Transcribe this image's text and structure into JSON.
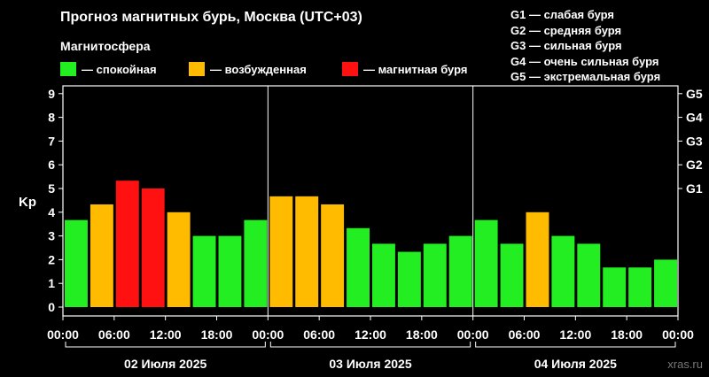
{
  "title": "Прогноз магнитных бурь, Москва (UTC+03)",
  "magnetosphere_label": "Магнитосфера",
  "legend": [
    {
      "label": "— спокойная",
      "color": "#22ee22"
    },
    {
      "label": "— возбужденная",
      "color": "#ffbb00"
    },
    {
      "label": "— магнитная буря",
      "color": "#ff1111"
    }
  ],
  "g_scale": [
    "G1 — слабая буря",
    "G2 — средняя буря",
    "G3 — сильная буря",
    "G4 — очень сильная буря",
    "G5 — экстремальная буря"
  ],
  "watermark": "xras.ru",
  "chart_data": {
    "type": "bar",
    "ylabel": "Kp",
    "ylim": [
      0,
      9
    ],
    "yticks": [
      "0",
      "1",
      "2",
      "3",
      "4",
      "5",
      "6",
      "7",
      "8",
      "9"
    ],
    "right_ticks": [
      {
        "value": 5,
        "label": "G1"
      },
      {
        "value": 6,
        "label": "G2"
      },
      {
        "value": 7,
        "label": "G3"
      },
      {
        "value": 8,
        "label": "G4"
      },
      {
        "value": 9,
        "label": "G5"
      }
    ],
    "x_tick_labels": [
      "00:00",
      "06:00",
      "12:00",
      "18:00",
      "00:00",
      "06:00",
      "12:00",
      "18:00",
      "00:00",
      "06:00",
      "12:00",
      "18:00",
      "00:00"
    ],
    "days": [
      "02 Июля 2025",
      "03 Июля 2025",
      "04 Июля 2025"
    ],
    "values": [
      3.67,
      4.33,
      5.33,
      5.0,
      4.0,
      3.0,
      3.0,
      3.67,
      4.67,
      4.67,
      4.33,
      3.33,
      2.67,
      2.33,
      2.67,
      3.0,
      3.67,
      2.67,
      4.0,
      3.0,
      2.67,
      1.67,
      1.67,
      2.0
    ],
    "levels": [
      "quiet",
      "active",
      "storm",
      "storm",
      "active",
      "quiet",
      "quiet",
      "quiet",
      "active",
      "active",
      "active",
      "quiet",
      "quiet",
      "quiet",
      "quiet",
      "quiet",
      "quiet",
      "quiet",
      "active",
      "quiet",
      "quiet",
      "quiet",
      "quiet",
      "quiet"
    ],
    "level_colors": {
      "quiet": "#22ee22",
      "active": "#ffbb00",
      "storm": "#ff1111"
    }
  }
}
